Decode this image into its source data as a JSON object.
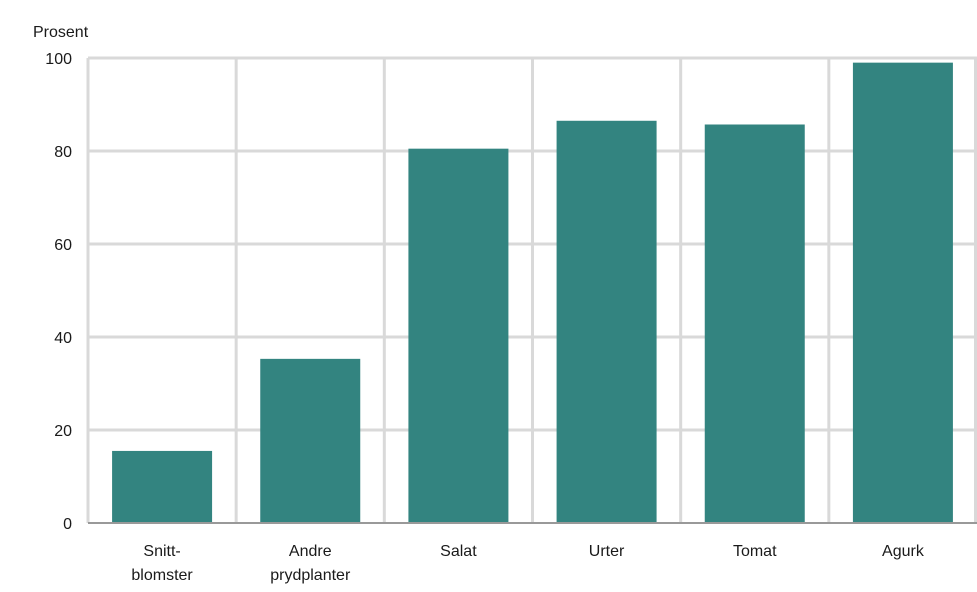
{
  "chart_data": {
    "type": "bar",
    "ylabel": "Prosent",
    "ylim": [
      0,
      100
    ],
    "yticks": [
      0,
      20,
      40,
      60,
      80,
      100
    ],
    "grid": true,
    "categories": [
      [
        "Snitt-",
        "blomster"
      ],
      [
        "Andre",
        "prydplanter"
      ],
      [
        "Salat"
      ],
      [
        "Urter"
      ],
      [
        "Tomat"
      ],
      [
        "Agurk"
      ]
    ],
    "values": [
      15.5,
      35.3,
      80.5,
      86.5,
      85.7,
      99.0
    ],
    "colors": {
      "bar": "#338480",
      "grid": "#d9d9d9",
      "axis": "#999999",
      "text": "#1a1a1a"
    }
  }
}
